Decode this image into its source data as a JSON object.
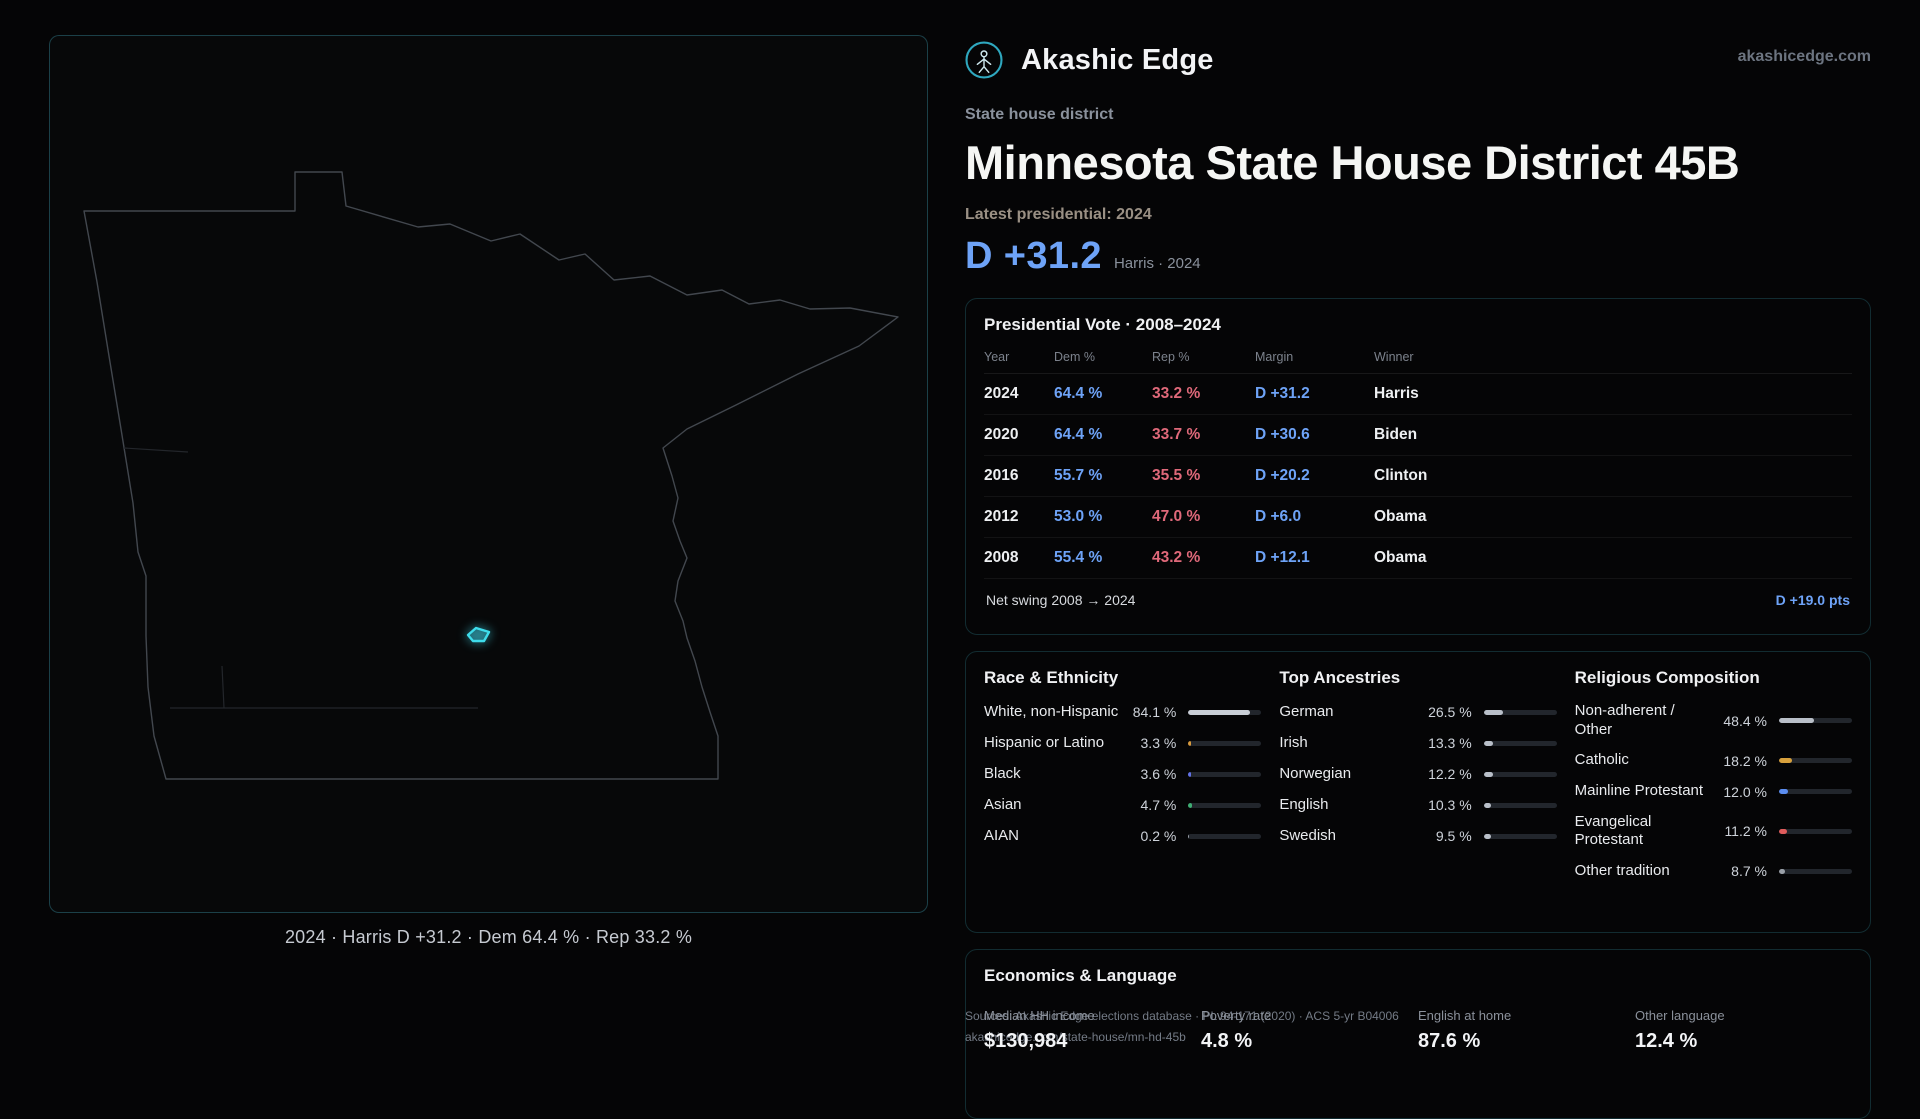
{
  "header": {
    "brand": "Akashic Edge",
    "site": "akashicedge.com"
  },
  "hero": {
    "kicker": "State house district",
    "title": "Minnesota State House District 45B",
    "latest": "Latest presidential: 2024",
    "margin": "D +31.2",
    "margin_context": "Harris · 2024"
  },
  "map": {
    "caption": "2024 · Harris D +31.2 · Dem 64.4 % · Rep 33.2 %"
  },
  "presidential": {
    "title": "Presidential Vote · 2008–2024",
    "columns": [
      "Year",
      "Dem %",
      "Rep %",
      "Margin",
      "Winner"
    ],
    "rows": [
      {
        "year": "2024",
        "dem": "64.4 %",
        "rep": "33.2 %",
        "margin": "D +31.2",
        "winner": "Harris"
      },
      {
        "year": "2020",
        "dem": "64.4 %",
        "rep": "33.7 %",
        "margin": "D +30.6",
        "winner": "Biden"
      },
      {
        "year": "2016",
        "dem": "55.7 %",
        "rep": "35.5 %",
        "margin": "D +20.2",
        "winner": "Clinton"
      },
      {
        "year": "2012",
        "dem": "53.0 %",
        "rep": "47.0 %",
        "margin": "D +6.0",
        "winner": "Obama"
      },
      {
        "year": "2008",
        "dem": "55.4 %",
        "rep": "43.2 %",
        "margin": "D +12.1",
        "winner": "Obama"
      }
    ],
    "net_swing_label": "Net swing 2008 → 2024",
    "net_swing_value": "D +19.0 pts"
  },
  "demographics": {
    "race": {
      "title": "Race & Ethnicity",
      "rows": [
        {
          "label": "White, non-Hispanic",
          "value": "84.1 %",
          "pct": 84.1,
          "color": "#c9ced6"
        },
        {
          "label": "Hispanic or Latino",
          "value": "3.3 %",
          "pct": 3.3,
          "color": "#d89a3d"
        },
        {
          "label": "Black",
          "value": "3.6 %",
          "pct": 3.6,
          "color": "#6272e8"
        },
        {
          "label": "Asian",
          "value": "4.7 %",
          "pct": 4.7,
          "color": "#3fae73"
        },
        {
          "label": "AIAN",
          "value": "0.2 %",
          "pct": 0.2,
          "color": "#9aa0a8"
        }
      ]
    },
    "ancestries": {
      "title": "Top Ancestries",
      "rows": [
        {
          "label": "German",
          "value": "26.5 %",
          "pct": 26.5,
          "color": "#b9bfc8"
        },
        {
          "label": "Irish",
          "value": "13.3 %",
          "pct": 13.3,
          "color": "#b9bfc8"
        },
        {
          "label": "Norwegian",
          "value": "12.2 %",
          "pct": 12.2,
          "color": "#b9bfc8"
        },
        {
          "label": "English",
          "value": "10.3 %",
          "pct": 10.3,
          "color": "#b9bfc8"
        },
        {
          "label": "Swedish",
          "value": "9.5 %",
          "pct": 9.5,
          "color": "#b9bfc8"
        }
      ]
    },
    "religion": {
      "title": "Religious Composition",
      "rows": [
        {
          "label": "Non-adherent / Other",
          "value": "48.4 %",
          "pct": 48.4,
          "color": "#b9bfc8"
        },
        {
          "label": "Catholic",
          "value": "18.2 %",
          "pct": 18.2,
          "color": "#d8a13d"
        },
        {
          "label": "Mainline Protestant",
          "value": "12.0 %",
          "pct": 12.0,
          "color": "#5b8df0"
        },
        {
          "label": "Evangelical Protestant",
          "value": "11.2 %",
          "pct": 11.2,
          "color": "#e05c5c"
        },
        {
          "label": "Other tradition",
          "value": "8.7 %",
          "pct": 8.7,
          "color": "#9aa0a8"
        }
      ]
    }
  },
  "economics": {
    "title": "Economics & Language",
    "stats": [
      {
        "label": "Median HH income",
        "value": "$130,984"
      },
      {
        "label": "Poverty rate",
        "value": "4.8 %"
      },
      {
        "label": "English at home",
        "value": "87.6 %"
      },
      {
        "label": "Other language",
        "value": "12.4 %"
      }
    ]
  },
  "sources": {
    "line1": "Sources: Akashic Edge elections database · PL 94-171 (2020) · ACS 5-yr B04006",
    "line2": "akashicedge.com/state-house/mn-hd-45b"
  },
  "colors": {
    "dem": "#6ea3f7",
    "rep": "#e0697a",
    "district_accent": "#3edceb"
  }
}
